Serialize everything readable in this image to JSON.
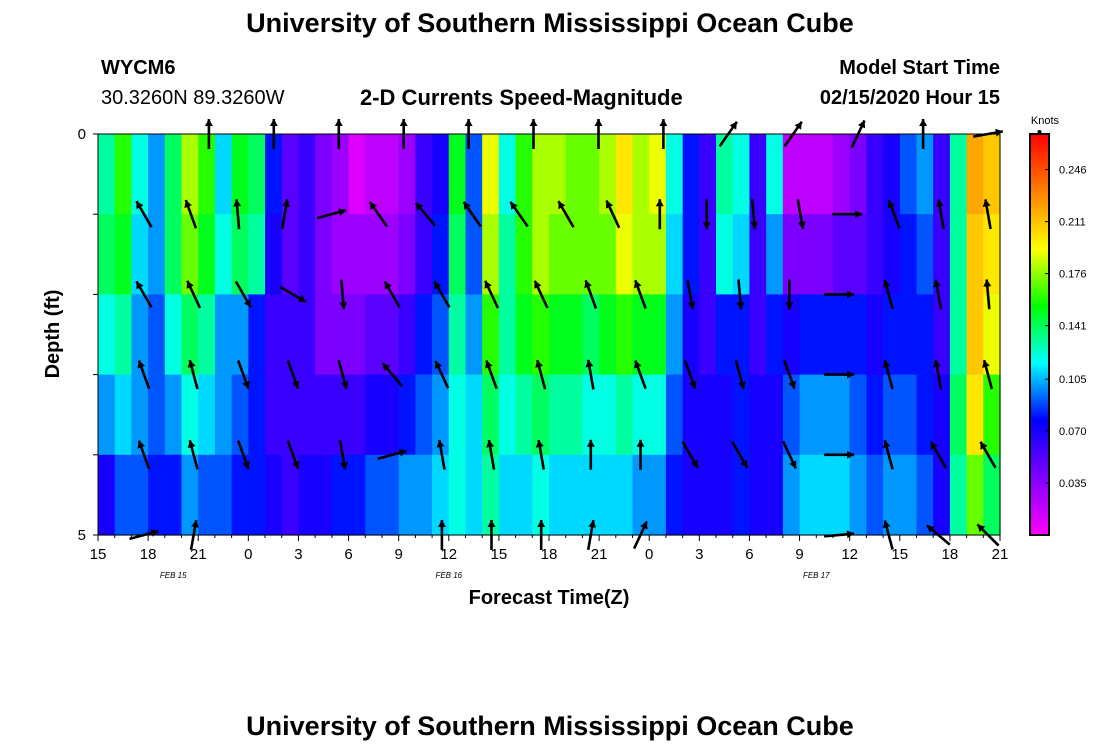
{
  "header": {
    "title": "University of Southern Mississippi Ocean Cube",
    "footer_title": "University of Southern Mississippi Ocean Cube",
    "station": "WYCM6",
    "location": "30.3260N 89.3260W",
    "subtitle": "2-D Currents Speed-Magnitude",
    "model_label": "Model Start Time",
    "model_time": "02/15/2020 Hour 15"
  },
  "chart_data": {
    "type": "heatmap",
    "title": "2-D Currents Speed-Magnitude",
    "xlabel": "Forecast Time(Z)",
    "ylabel": "Depth (ft)",
    "x_ticks": [
      "15",
      "18",
      "21",
      "0",
      "3",
      "6",
      "9",
      "12",
      "15",
      "18",
      "21",
      "0",
      "3",
      "6",
      "9",
      "12",
      "15",
      "18",
      "21"
    ],
    "date_labels": [
      {
        "text": "FEB 15",
        "hour_index": 4.5
      },
      {
        "text": "FEB 16",
        "hour_index": 21
      },
      {
        "text": "FEB 17",
        "hour_index": 43
      }
    ],
    "y_ticks": [
      "0",
      "5"
    ],
    "ylim": [
      0,
      5
    ],
    "n_hours": 54,
    "depth_bins": 5,
    "colorbar": {
      "label": "Knots",
      "range": [
        0,
        0.27
      ],
      "ticks": [
        "0.246",
        "0.211",
        "0.176",
        "0.141",
        "0.105",
        "0.070",
        "0.035"
      ],
      "tick_values": [
        0.246,
        0.211,
        0.176,
        0.141,
        0.105,
        0.07,
        0.035
      ],
      "stops": [
        "#ff00ff",
        "#8000ff",
        "#0000ff",
        "#00ffff",
        "#00ff00",
        "#ffff00",
        "#ff8000",
        "#ff0000"
      ]
    },
    "speed_rows": [
      [
        0.13,
        0.16,
        0.12,
        0.1,
        0.14,
        0.18,
        0.16,
        0.11,
        0.15,
        0.14,
        0.08,
        0.05,
        0.06,
        0.04,
        0.03,
        0.01,
        0.02,
        0.02,
        0.03,
        0.06,
        0.07,
        0.15,
        0.09,
        0.19,
        0.12,
        0.16,
        0.18,
        0.18,
        0.17,
        0.17,
        0.18,
        0.2,
        0.18,
        0.19,
        0.12,
        0.08,
        0.06,
        0.13,
        0.12,
        0.06,
        0.12,
        0.02,
        0.02,
        0.02,
        0.03,
        0.04,
        0.06,
        0.07,
        0.09,
        0.1,
        0.06,
        0.13,
        0.22,
        0.21
      ],
      [
        0.14,
        0.15,
        0.11,
        0.1,
        0.14,
        0.17,
        0.15,
        0.12,
        0.14,
        0.13,
        0.07,
        0.05,
        0.06,
        0.04,
        0.03,
        0.03,
        0.03,
        0.03,
        0.04,
        0.06,
        0.08,
        0.14,
        0.09,
        0.18,
        0.13,
        0.16,
        0.18,
        0.17,
        0.17,
        0.17,
        0.17,
        0.19,
        0.18,
        0.18,
        0.11,
        0.08,
        0.06,
        0.12,
        0.11,
        0.06,
        0.1,
        0.04,
        0.04,
        0.04,
        0.05,
        0.05,
        0.06,
        0.07,
        0.08,
        0.09,
        0.06,
        0.13,
        0.21,
        0.2
      ],
      [
        0.12,
        0.13,
        0.1,
        0.09,
        0.12,
        0.14,
        0.13,
        0.1,
        0.1,
        0.08,
        0.06,
        0.06,
        0.06,
        0.04,
        0.04,
        0.04,
        0.05,
        0.05,
        0.06,
        0.08,
        0.09,
        0.13,
        0.1,
        0.16,
        0.13,
        0.15,
        0.16,
        0.15,
        0.15,
        0.14,
        0.15,
        0.16,
        0.15,
        0.15,
        0.1,
        0.07,
        0.06,
        0.08,
        0.08,
        0.06,
        0.08,
        0.07,
        0.08,
        0.08,
        0.08,
        0.08,
        0.07,
        0.08,
        0.08,
        0.08,
        0.06,
        0.13,
        0.21,
        0.19
      ],
      [
        0.1,
        0.11,
        0.1,
        0.09,
        0.1,
        0.12,
        0.11,
        0.1,
        0.09,
        0.08,
        0.06,
        0.06,
        0.06,
        0.06,
        0.06,
        0.06,
        0.07,
        0.07,
        0.08,
        0.09,
        0.1,
        0.12,
        0.11,
        0.14,
        0.12,
        0.13,
        0.14,
        0.13,
        0.13,
        0.12,
        0.12,
        0.13,
        0.12,
        0.12,
        0.09,
        0.07,
        0.07,
        0.07,
        0.08,
        0.07,
        0.07,
        0.09,
        0.1,
        0.1,
        0.1,
        0.09,
        0.08,
        0.09,
        0.09,
        0.08,
        0.07,
        0.14,
        0.2,
        0.16
      ],
      [
        0.07,
        0.09,
        0.09,
        0.08,
        0.08,
        0.1,
        0.09,
        0.09,
        0.08,
        0.08,
        0.07,
        0.06,
        0.07,
        0.07,
        0.08,
        0.08,
        0.09,
        0.09,
        0.1,
        0.1,
        0.11,
        0.12,
        0.11,
        0.13,
        0.11,
        0.11,
        0.12,
        0.11,
        0.11,
        0.11,
        0.11,
        0.11,
        0.1,
        0.1,
        0.08,
        0.07,
        0.07,
        0.07,
        0.08,
        0.07,
        0.07,
        0.1,
        0.11,
        0.11,
        0.11,
        0.1,
        0.09,
        0.1,
        0.1,
        0.09,
        0.07,
        0.13,
        0.17,
        0.14
      ]
    ],
    "vectors": [
      [
        null,
        null,
        {
          "d": 0
        },
        null,
        {
          "d": 0
        },
        null,
        {
          "d": 0
        },
        null,
        {
          "d": 0
        },
        null,
        {
          "d": 0
        },
        null,
        {
          "d": 0
        },
        null,
        {
          "d": 0
        },
        null,
        {
          "d": 0
        },
        null,
        {
          "d": 35
        },
        null,
        {
          "d": 35
        },
        null,
        {
          "d": 25
        },
        null,
        {
          "d": 0
        },
        null,
        {
          "d": 80
        }
      ],
      [
        {
          "d": -30
        },
        {
          "d": -20
        },
        {
          "d": -5
        },
        {
          "d": 10
        },
        {
          "d": 75
        },
        {
          "d": -35
        },
        {
          "d": -40
        },
        {
          "d": -35
        },
        {
          "d": -35
        },
        {
          "d": -30
        },
        {
          "d": -25
        },
        {
          "d": 0
        },
        {
          "d": 180
        },
        {
          "d": 175
        },
        {
          "d": 170
        },
        {
          "d": 90
        },
        {
          "d": -20
        },
        {
          "d": -10
        },
        {
          "d": -10
        }
      ],
      [
        {
          "d": -30
        },
        {
          "d": -25
        },
        {
          "d": 150
        },
        {
          "d": 120
        },
        {
          "d": 175
        },
        {
          "d": -30
        },
        {
          "d": -30
        },
        {
          "d": -25
        },
        {
          "d": -25
        },
        {
          "d": -20
        },
        {
          "d": -20
        },
        {
          "d": 170
        },
        {
          "d": 175
        },
        {
          "d": 180
        },
        {
          "d": 90
        },
        {
          "d": -15
        },
        {
          "d": -10
        },
        {
          "d": -5
        }
      ],
      [
        {
          "d": -20
        },
        {
          "d": -15
        },
        {
          "d": 160
        },
        {
          "d": 160
        },
        {
          "d": 165
        },
        {
          "d": -40
        },
        {
          "d": -25
        },
        {
          "d": -20
        },
        {
          "d": -15
        },
        {
          "d": -10
        },
        {
          "d": -20
        },
        {
          "d": 160
        },
        {
          "d": 165
        },
        {
          "d": 160
        },
        {
          "d": 90
        },
        {
          "d": -15
        },
        {
          "d": -10
        },
        {
          "d": -15
        }
      ],
      [
        {
          "d": -20
        },
        {
          "d": -15
        },
        {
          "d": 160
        },
        {
          "d": 160
        },
        {
          "d": 170
        },
        {
          "d": 75
        },
        {
          "d": -10
        },
        {
          "d": -10
        },
        {
          "d": -10
        },
        {
          "d": 0
        },
        {
          "d": 0
        },
        {
          "d": 150
        },
        {
          "d": 150
        },
        {
          "d": 155
        },
        {
          "d": 90
        },
        {
          "d": -15
        },
        {
          "d": -30
        },
        {
          "d": -30
        }
      ],
      [
        {
          "d": 75
        },
        {
          "d": 10
        },
        null,
        null,
        null,
        null,
        {
          "d": 0
        },
        {
          "d": 0
        },
        {
          "d": 0
        },
        {
          "d": 10
        },
        {
          "d": 25
        },
        null,
        null,
        null,
        {
          "d": 85
        },
        {
          "d": -15
        },
        {
          "d": -50
        },
        {
          "d": -45
        }
      ]
    ]
  }
}
